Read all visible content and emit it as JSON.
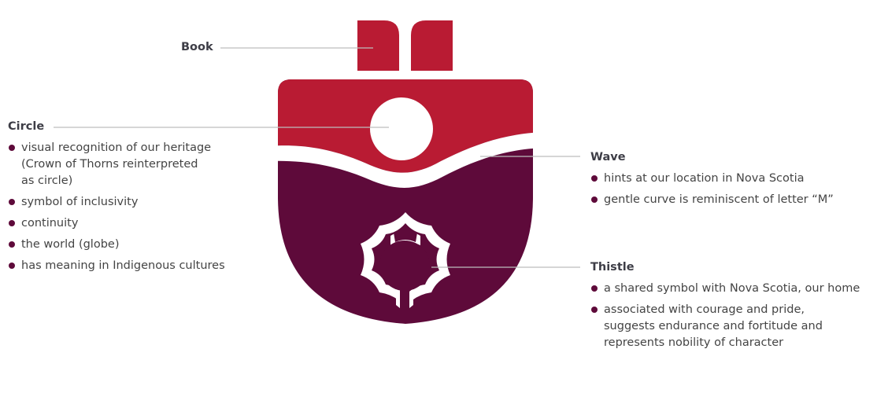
{
  "colors": {
    "red": "#b91b33",
    "plum": "#5e0a3a",
    "leader": "#bdbdbd",
    "bullet": "#5e0a3a"
  },
  "icons": [
    "book-icon",
    "circle-icon",
    "wave-icon",
    "thistle-icon",
    "shield-logo"
  ],
  "callouts": {
    "book": {
      "title": "Book"
    },
    "circle": {
      "title": "Circle",
      "items": [
        [
          "visual recognition of our heritage",
          "(Crown of Thorns reinterpreted",
          "as circle)"
        ],
        [
          "symbol of inclusivity"
        ],
        [
          "continuity"
        ],
        [
          "the world (globe)"
        ],
        [
          "has meaning in Indigenous cultures"
        ]
      ]
    },
    "wave": {
      "title": "Wave",
      "items": [
        [
          "hints at our location in Nova Scotia"
        ],
        [
          "gentle curve is reminiscent of letter “M”"
        ]
      ]
    },
    "thistle": {
      "title": "Thistle",
      "items": [
        [
          "a shared symbol with Nova Scotia, our home"
        ],
        [
          "associated with courage and pride,",
          "suggests endurance and fortitude and",
          "represents nobility of character"
        ]
      ]
    }
  }
}
